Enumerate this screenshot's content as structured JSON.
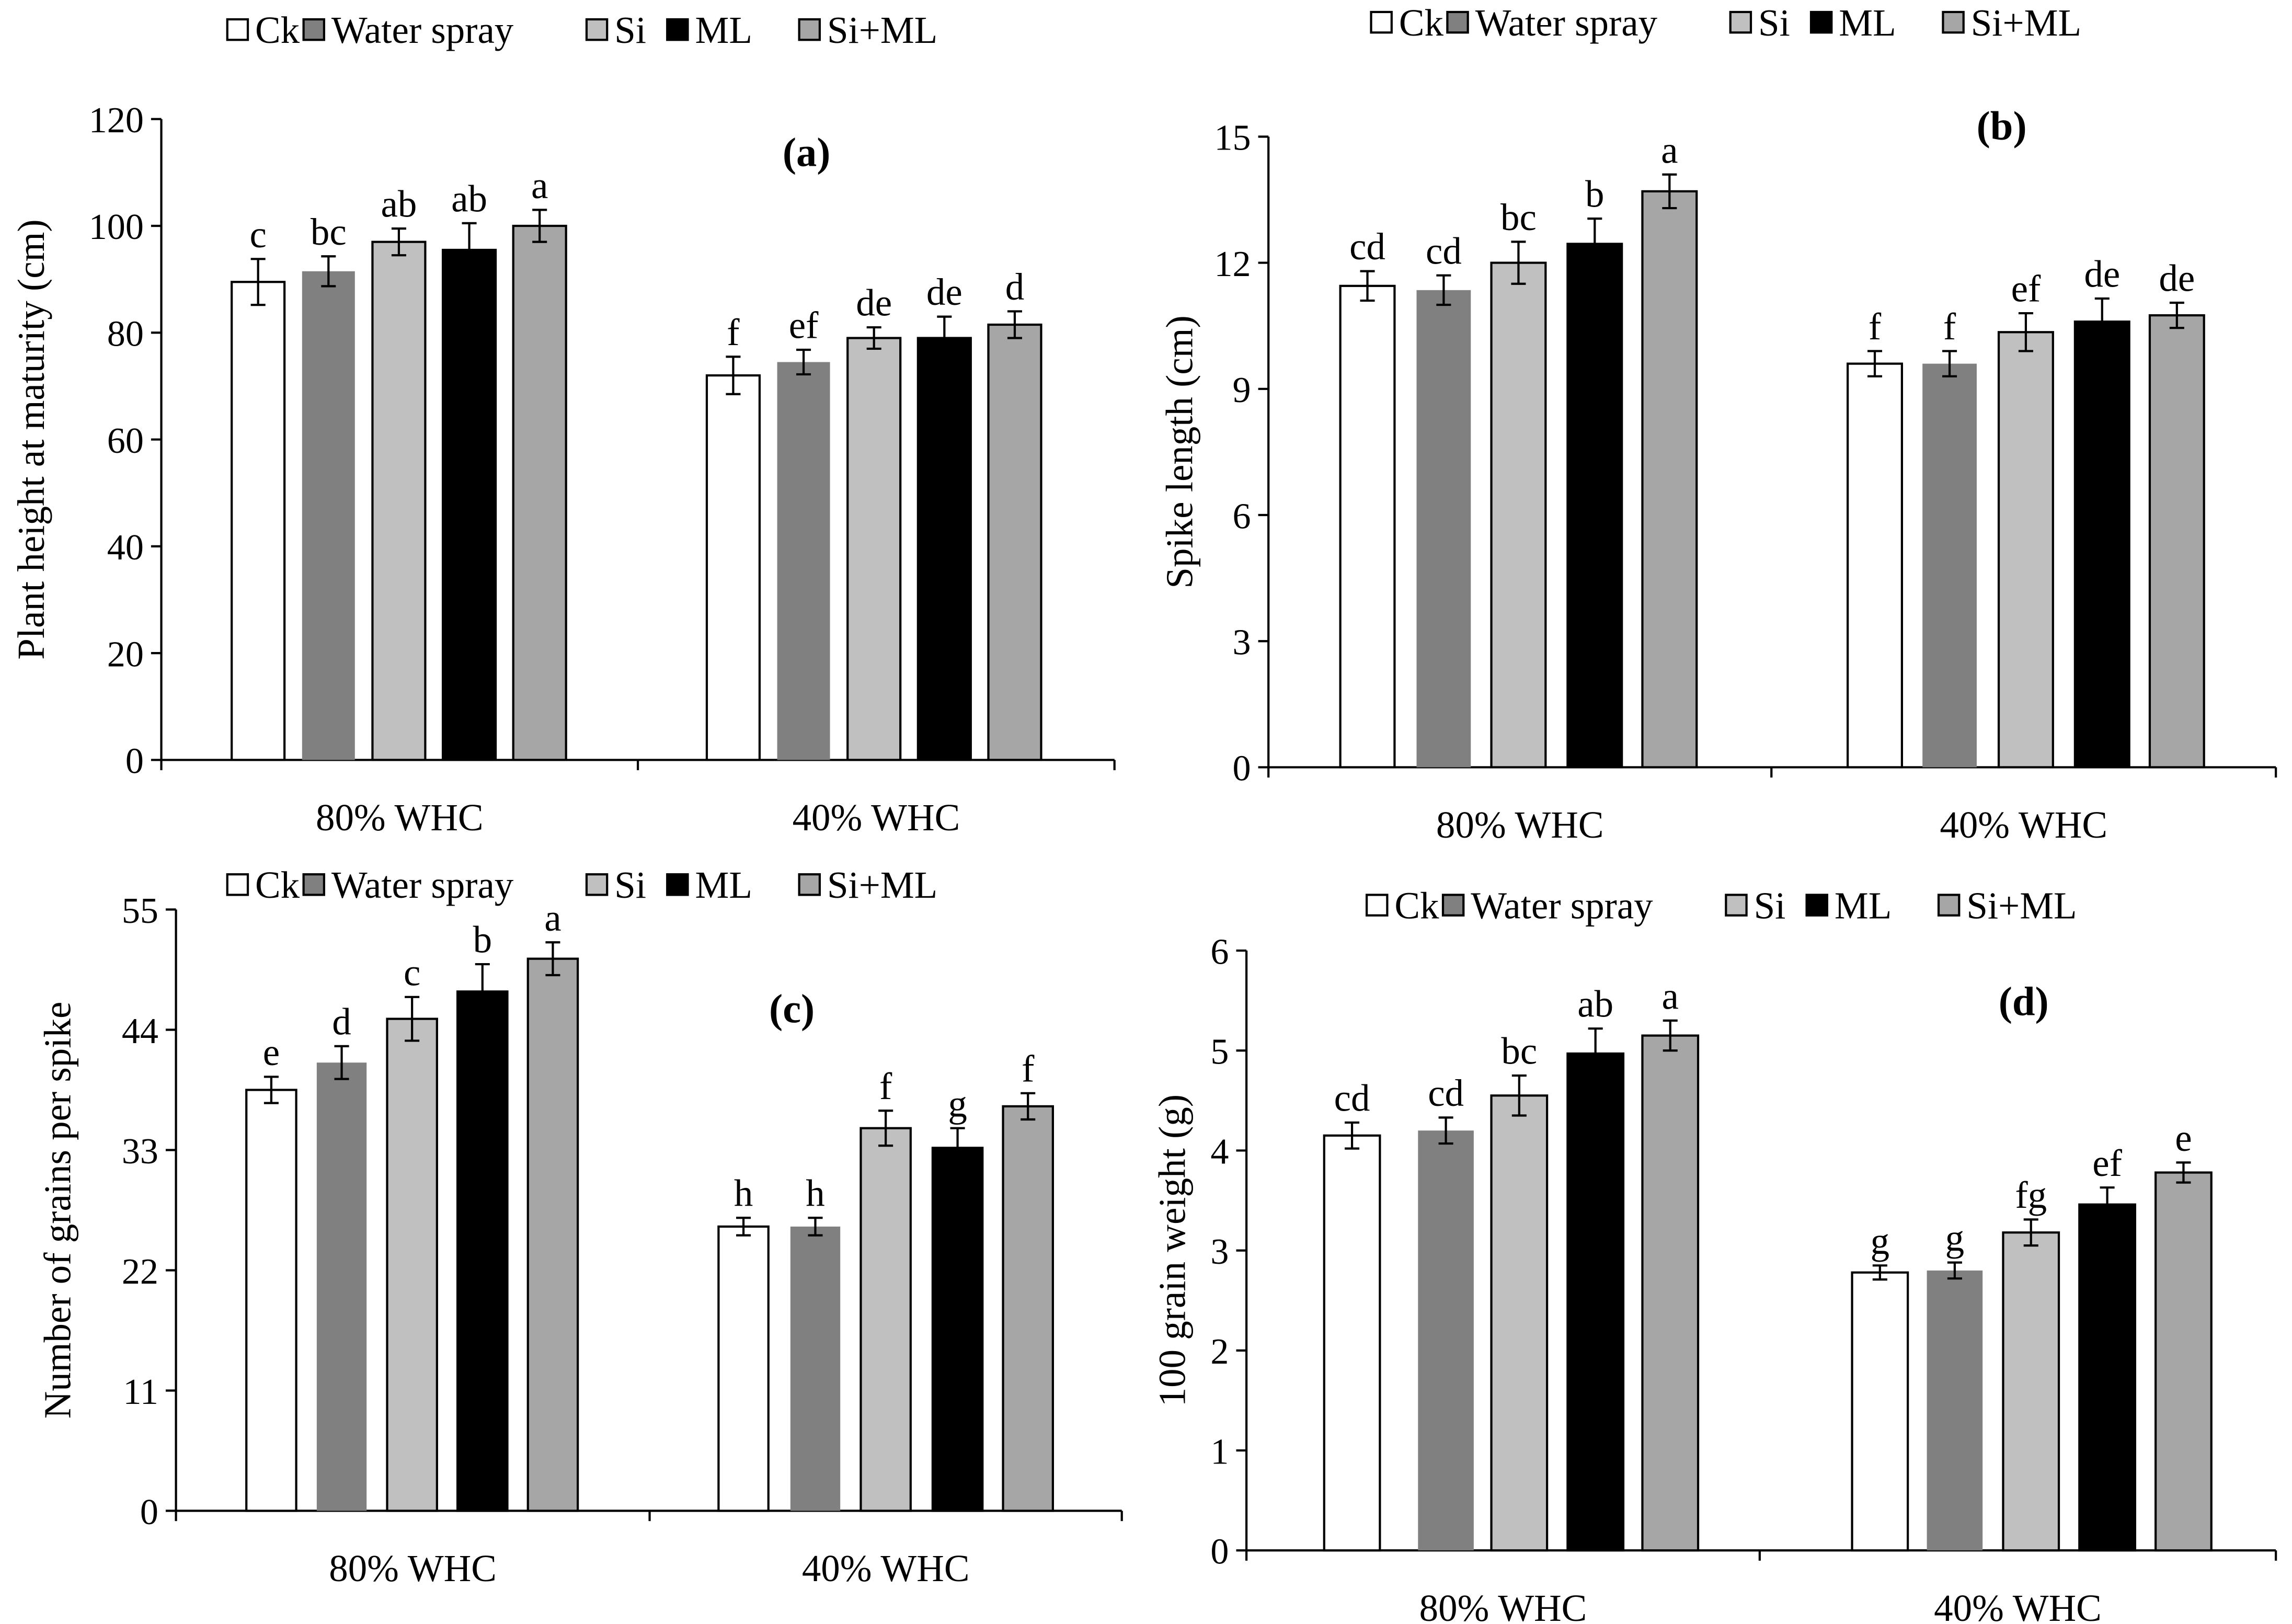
{
  "legend": [
    "Ck",
    "Water spray",
    "Si",
    "ML",
    "Si+ML"
  ],
  "colors": {
    "Ck": "#ffffff",
    "Water spray": "#808080",
    "Si": "#c0c0c0",
    "ML": "#000000",
    "Si+ML": "#a6a6a6"
  },
  "chart_data": [
    {
      "type": "bar",
      "panel": "(a)",
      "ylabel": "Plant height at maturity (cm)",
      "categories": [
        "80% WHC",
        "40% WHC"
      ],
      "ylim": [
        0,
        120
      ],
      "yticks": [
        0,
        20,
        40,
        60,
        80,
        100,
        120
      ],
      "series": [
        {
          "name": "Ck",
          "values": [
            89.5,
            72
          ],
          "errors": [
            4.3,
            3.5
          ],
          "letters": [
            "c",
            "f"
          ]
        },
        {
          "name": "Water spray",
          "values": [
            91.5,
            74.5
          ],
          "errors": [
            2.8,
            2.3
          ],
          "letters": [
            "bc",
            "ef"
          ]
        },
        {
          "name": "Si",
          "values": [
            97,
            79
          ],
          "errors": [
            2.5,
            2
          ],
          "letters": [
            "ab",
            "de"
          ]
        },
        {
          "name": "ML",
          "values": [
            95.5,
            79
          ],
          "errors": [
            5,
            4
          ],
          "letters": [
            "ab",
            "de"
          ]
        },
        {
          "name": "Si+ML",
          "values": [
            100,
            81.5
          ],
          "errors": [
            3,
            2.5
          ],
          "letters": [
            "a",
            "d"
          ]
        }
      ]
    },
    {
      "type": "bar",
      "panel": "(b)",
      "ylabel": "Spike length (cm)",
      "categories": [
        "80% WHC",
        "40% WHC"
      ],
      "ylim": [
        0,
        15
      ],
      "yticks": [
        0,
        3,
        6,
        9,
        12,
        15
      ],
      "series": [
        {
          "name": "Ck",
          "values": [
            11.45,
            9.6
          ],
          "errors": [
            0.35,
            0.3
          ],
          "letters": [
            "cd",
            "f"
          ]
        },
        {
          "name": "Water spray",
          "values": [
            11.35,
            9.6
          ],
          "errors": [
            0.35,
            0.3
          ],
          "letters": [
            "cd",
            "f"
          ]
        },
        {
          "name": "Si",
          "values": [
            12.0,
            10.35
          ],
          "errors": [
            0.5,
            0.45
          ],
          "letters": [
            "bc",
            "ef"
          ]
        },
        {
          "name": "ML",
          "values": [
            12.45,
            10.6
          ],
          "errors": [
            0.6,
            0.55
          ],
          "letters": [
            "b",
            "de"
          ]
        },
        {
          "name": "Si+ML",
          "values": [
            13.7,
            10.75
          ],
          "errors": [
            0.4,
            0.3
          ],
          "letters": [
            "a",
            "de"
          ]
        }
      ]
    },
    {
      "type": "bar",
      "panel": "(c)",
      "ylabel": "Number of grains per spike",
      "categories": [
        "80% WHC",
        "40% WHC"
      ],
      "ylim": [
        0,
        55
      ],
      "yticks": [
        0,
        11,
        22,
        33,
        44,
        55
      ],
      "series": [
        {
          "name": "Ck",
          "values": [
            38.5,
            26
          ],
          "errors": [
            1.2,
            0.8
          ],
          "letters": [
            "e",
            "h"
          ]
        },
        {
          "name": "Water spray",
          "values": [
            41,
            26
          ],
          "errors": [
            1.5,
            0.8
          ],
          "letters": [
            "d",
            "h"
          ]
        },
        {
          "name": "Si",
          "values": [
            45,
            35
          ],
          "errors": [
            2,
            1.6
          ],
          "letters": [
            "c",
            "f"
          ]
        },
        {
          "name": "ML",
          "values": [
            47.5,
            33.2
          ],
          "errors": [
            2.5,
            1.8
          ],
          "letters": [
            "b",
            "g"
          ]
        },
        {
          "name": "Si+ML",
          "values": [
            50.5,
            37
          ],
          "errors": [
            1.5,
            1.2
          ],
          "letters": [
            "a",
            "f"
          ]
        }
      ]
    },
    {
      "type": "bar",
      "panel": "(d)",
      "ylabel": "100 grain weight (g)",
      "categories": [
        "80% WHC",
        "40% WHC"
      ],
      "ylim": [
        0,
        6
      ],
      "yticks": [
        0,
        1,
        2,
        3,
        4,
        5,
        6
      ],
      "series": [
        {
          "name": "Ck",
          "values": [
            4.15,
            2.78
          ],
          "errors": [
            0.13,
            0.07
          ],
          "letters": [
            "cd",
            "g"
          ]
        },
        {
          "name": "Water spray",
          "values": [
            4.2,
            2.8
          ],
          "errors": [
            0.13,
            0.08
          ],
          "letters": [
            "cd",
            "g"
          ]
        },
        {
          "name": "Si",
          "values": [
            4.55,
            3.18
          ],
          "errors": [
            0.2,
            0.13
          ],
          "letters": [
            "bc",
            "fg"
          ]
        },
        {
          "name": "ML",
          "values": [
            4.97,
            3.46
          ],
          "errors": [
            0.25,
            0.17
          ],
          "letters": [
            "ab",
            "ef"
          ]
        },
        {
          "name": "Si+ML",
          "values": [
            5.15,
            3.78
          ],
          "errors": [
            0.15,
            0.1
          ],
          "letters": [
            "a",
            "e"
          ]
        }
      ]
    }
  ]
}
